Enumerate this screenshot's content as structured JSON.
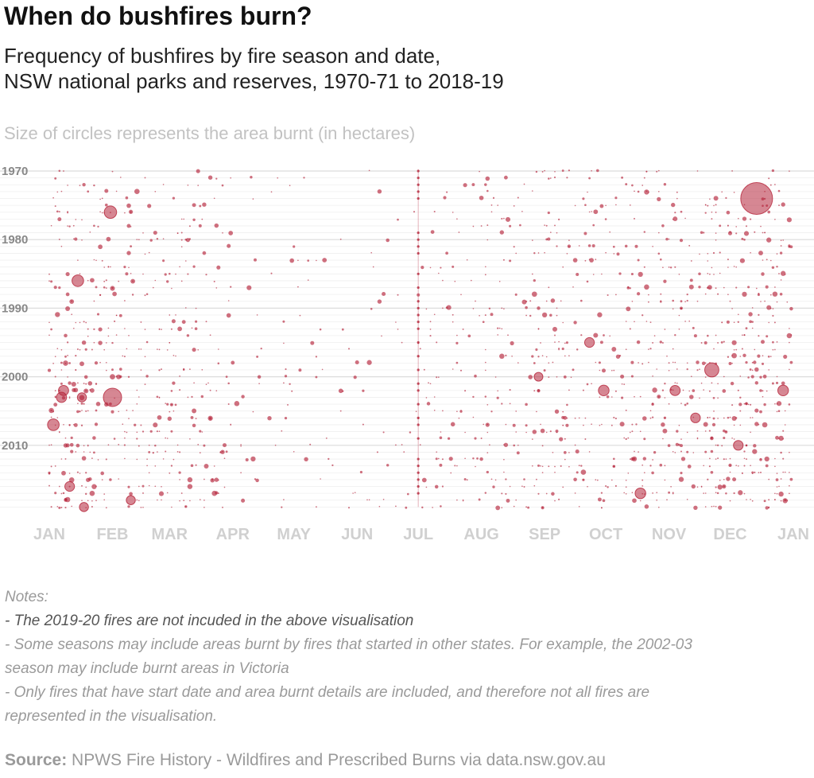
{
  "header": {
    "title": "When do bushfires burn?",
    "subtitle_line1": "Frequency of bushfires by fire season and date,",
    "subtitle_line2": "NSW national parks and reserves, 1970-71 to 2018-19",
    "size_note": "Size of circles represents the area burnt (in hectares)"
  },
  "notes": {
    "heading": "Notes:",
    "note1": "- The 2019-20 fires are not incuded in the above visualisation",
    "note2_line1": "- Some seasons may include areas burnt by fires that started in other states. For example, the 2002-03",
    "note2_line2": "season may include burnt areas in Victoria",
    "note3_line1": "- Only fires that have start date and area burnt details are included, and therefore not all fires are",
    "note3_line2": "represented in the visualisation."
  },
  "source": {
    "label": "Source:",
    "text": "NPWS Fire History - Wildfires and Prescribed Burns via data.nsw.gov.au"
  },
  "chart_data": {
    "type": "scatter",
    "x_axis": "date of year",
    "x_tick_labels": [
      "JAN",
      "FEB",
      "MAR",
      "APR",
      "MAY",
      "JUN",
      "JUL",
      "AUG",
      "SEP",
      "OCT",
      "NOV",
      "DEC",
      "JAN"
    ],
    "y_tick_labels": [
      "1970",
      "1980",
      "1990",
      "2000",
      "2010"
    ],
    "y_ticks": [
      1970,
      1980,
      1990,
      2000,
      2010
    ],
    "y_range": [
      1970,
      2019
    ],
    "y_reversed": true,
    "point_color": "#b5243a",
    "size_encoding": "area burnt (hectares)",
    "large_fires": [
      {
        "season": 1974,
        "day": 347,
        "relative_size": 1.0
      },
      {
        "season": 1999,
        "day": 325,
        "relative_size": 0.35
      },
      {
        "season": 2003,
        "day": 31,
        "relative_size": 0.5
      },
      {
        "season": 1976,
        "day": 30,
        "relative_size": 0.28
      },
      {
        "season": 1986,
        "day": 14,
        "relative_size": 0.25
      },
      {
        "season": 2007,
        "day": 2,
        "relative_size": 0.25
      },
      {
        "season": 2002,
        "day": 360,
        "relative_size": 0.22
      },
      {
        "season": 2002,
        "day": 272,
        "relative_size": 0.22
      },
      {
        "season": 2002,
        "day": 307,
        "relative_size": 0.2
      },
      {
        "season": 2017,
        "day": 290,
        "relative_size": 0.22
      },
      {
        "season": 2002,
        "day": 7,
        "relative_size": 0.2
      },
      {
        "season": 2003,
        "day": 6,
        "relative_size": 0.2
      },
      {
        "season": 2016,
        "day": 10,
        "relative_size": 0.18
      },
      {
        "season": 2006,
        "day": 317,
        "relative_size": 0.18
      },
      {
        "season": 2010,
        "day": 338,
        "relative_size": 0.18
      },
      {
        "season": 1995,
        "day": 265,
        "relative_size": 0.18
      },
      {
        "season": 2019,
        "day": 17,
        "relative_size": 0.16
      },
      {
        "season": 2018,
        "day": 40,
        "relative_size": 0.16
      },
      {
        "season": 2003,
        "day": 16,
        "relative_size": 0.16
      },
      {
        "season": 2000,
        "day": 240,
        "relative_size": 0.15
      }
    ]
  }
}
